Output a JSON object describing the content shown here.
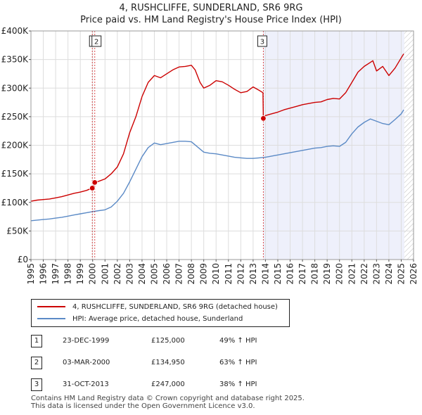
{
  "header": {
    "title": "4, RUSHCLIFFE, SUNDERLAND, SR6 9RG",
    "subtitle": "Price paid vs. HM Land Registry's House Price Index (HPI)"
  },
  "chart_data": {
    "type": "line",
    "title": "4, RUSHCLIFFE, SUNDERLAND, SR6 9RG",
    "subtitle": "Price paid vs. HM Land Registry's House Price Index (HPI)",
    "xlabel": "",
    "ylabel": "",
    "xlim": [
      1995,
      2026
    ],
    "ylim": [
      0,
      400000
    ],
    "y_ticks": [
      {
        "value": 0,
        "label": "£0"
      },
      {
        "value": 50000,
        "label": "£50K"
      },
      {
        "value": 100000,
        "label": "£100K"
      },
      {
        "value": 150000,
        "label": "£150K"
      },
      {
        "value": 200000,
        "label": "£200K"
      },
      {
        "value": 250000,
        "label": "£250K"
      },
      {
        "value": 300000,
        "label": "£300K"
      },
      {
        "value": 350000,
        "label": "£350K"
      },
      {
        "value": 400000,
        "label": "£400K"
      }
    ],
    "x_ticks": [
      "1995",
      "1996",
      "1997",
      "1998",
      "1999",
      "2000",
      "2001",
      "2002",
      "2003",
      "2004",
      "2005",
      "2006",
      "2007",
      "2008",
      "2009",
      "2010",
      "2011",
      "2012",
      "2013",
      "2014",
      "2015",
      "2016",
      "2017",
      "2018",
      "2019",
      "2020",
      "2021",
      "2022",
      "2023",
      "2024",
      "2025",
      "2026"
    ],
    "grid": true,
    "shaded_region": {
      "from": 2013.83,
      "to": 2025.25
    },
    "future_hatch": {
      "from": 2025.25,
      "to": 2026
    },
    "series": [
      {
        "name": "4, RUSHCLIFFE, SUNDERLAND, SR6 9RG (detached house)",
        "color": "#cc0000",
        "x": [
          1995.0,
          1995.5,
          1996.0,
          1996.5,
          1997.0,
          1997.5,
          1998.0,
          1998.5,
          1999.0,
          1999.5,
          1999.97,
          2000.17,
          2000.5,
          2001.0,
          2001.5,
          2002.0,
          2002.5,
          2003.0,
          2003.5,
          2004.0,
          2004.5,
          2005.0,
          2005.5,
          2006.0,
          2006.5,
          2007.0,
          2007.5,
          2008.0,
          2008.3,
          2008.7,
          2009.0,
          2009.5,
          2010.0,
          2010.5,
          2011.0,
          2011.5,
          2012.0,
          2012.5,
          2013.0,
          2013.5,
          2013.8,
          2013.83,
          2014.0,
          2014.5,
          2015.0,
          2015.5,
          2016.0,
          2016.5,
          2017.0,
          2017.5,
          2018.0,
          2018.5,
          2019.0,
          2019.5,
          2020.0,
          2020.5,
          2021.0,
          2021.5,
          2022.0,
          2022.5,
          2022.7,
          2023.0,
          2023.5,
          2024.0,
          2024.5,
          2025.0,
          2025.2
        ],
        "values": [
          102000,
          104000,
          105000,
          106000,
          108000,
          110000,
          113000,
          116000,
          118000,
          121000,
          125000,
          134950,
          137000,
          141000,
          150000,
          162000,
          185000,
          222000,
          250000,
          285000,
          310000,
          322000,
          318000,
          325000,
          332000,
          337000,
          338000,
          340000,
          332000,
          310000,
          300000,
          305000,
          313000,
          311000,
          305000,
          298000,
          292000,
          294000,
          302000,
          296000,
          292000,
          247000,
          252000,
          255000,
          258000,
          262000,
          265000,
          268000,
          271000,
          273000,
          275000,
          276000,
          280000,
          282000,
          281000,
          292000,
          310000,
          328000,
          338000,
          345000,
          348000,
          330000,
          338000,
          322000,
          335000,
          353000,
          360000
        ]
      },
      {
        "name": "HPI: Average price, detached house, Sunderland",
        "color": "#5b8ac6",
        "x": [
          1995.0,
          1995.5,
          1996.0,
          1996.5,
          1997.0,
          1997.5,
          1998.0,
          1998.5,
          1999.0,
          1999.5,
          2000.0,
          2000.5,
          2001.0,
          2001.5,
          2002.0,
          2002.5,
          2003.0,
          2003.5,
          2004.0,
          2004.5,
          2005.0,
          2005.5,
          2006.0,
          2006.5,
          2007.0,
          2007.5,
          2008.0,
          2008.5,
          2009.0,
          2009.5,
          2010.0,
          2010.5,
          2011.0,
          2011.5,
          2012.0,
          2012.5,
          2013.0,
          2013.5,
          2014.0,
          2014.5,
          2015.0,
          2015.5,
          2016.0,
          2016.5,
          2017.0,
          2017.5,
          2018.0,
          2018.5,
          2019.0,
          2019.5,
          2020.0,
          2020.5,
          2021.0,
          2021.5,
          2022.0,
          2022.5,
          2023.0,
          2023.5,
          2024.0,
          2024.5,
          2025.0,
          2025.2
        ],
        "values": [
          68000,
          69000,
          70000,
          71000,
          72500,
          74000,
          76000,
          78000,
          80000,
          82000,
          84000,
          85500,
          87000,
          92000,
          102000,
          116000,
          136000,
          158000,
          180000,
          196000,
          204000,
          201000,
          203000,
          205000,
          207000,
          207000,
          206000,
          197000,
          188000,
          186000,
          185000,
          183000,
          181000,
          179000,
          178000,
          177000,
          177000,
          178000,
          179000,
          181000,
          183000,
          185000,
          187000,
          189000,
          191000,
          193000,
          195000,
          196000,
          198000,
          199000,
          198000,
          205000,
          220000,
          232000,
          240000,
          246000,
          242000,
          238000,
          236000,
          245000,
          255000,
          262000
        ]
      }
    ],
    "annotations": [
      {
        "label": "1",
        "x": 1999.97,
        "y": 125000
      },
      {
        "label": "2",
        "x": 2000.17,
        "y": 134950
      },
      {
        "label": "3",
        "x": 2013.83,
        "y": 247000
      }
    ]
  },
  "legend": {
    "items": [
      {
        "label": "4, RUSHCLIFFE, SUNDERLAND, SR6 9RG (detached house)",
        "color": "#cc0000"
      },
      {
        "label": "HPI: Average price, detached house, Sunderland",
        "color": "#5b8ac6"
      }
    ]
  },
  "transactions": [
    {
      "num": "1",
      "date": "23-DEC-1999",
      "price": "£125,000",
      "hpi": "49% ↑ HPI"
    },
    {
      "num": "2",
      "date": "03-MAR-2000",
      "price": "£134,950",
      "hpi": "63% ↑ HPI"
    },
    {
      "num": "3",
      "date": "31-OCT-2013",
      "price": "£247,000",
      "hpi": "38% ↑ HPI"
    }
  ],
  "footer": {
    "line1": "Contains HM Land Registry data © Crown copyright and database right 2025.",
    "line2": "This data is licensed under the Open Government Licence v3.0."
  }
}
